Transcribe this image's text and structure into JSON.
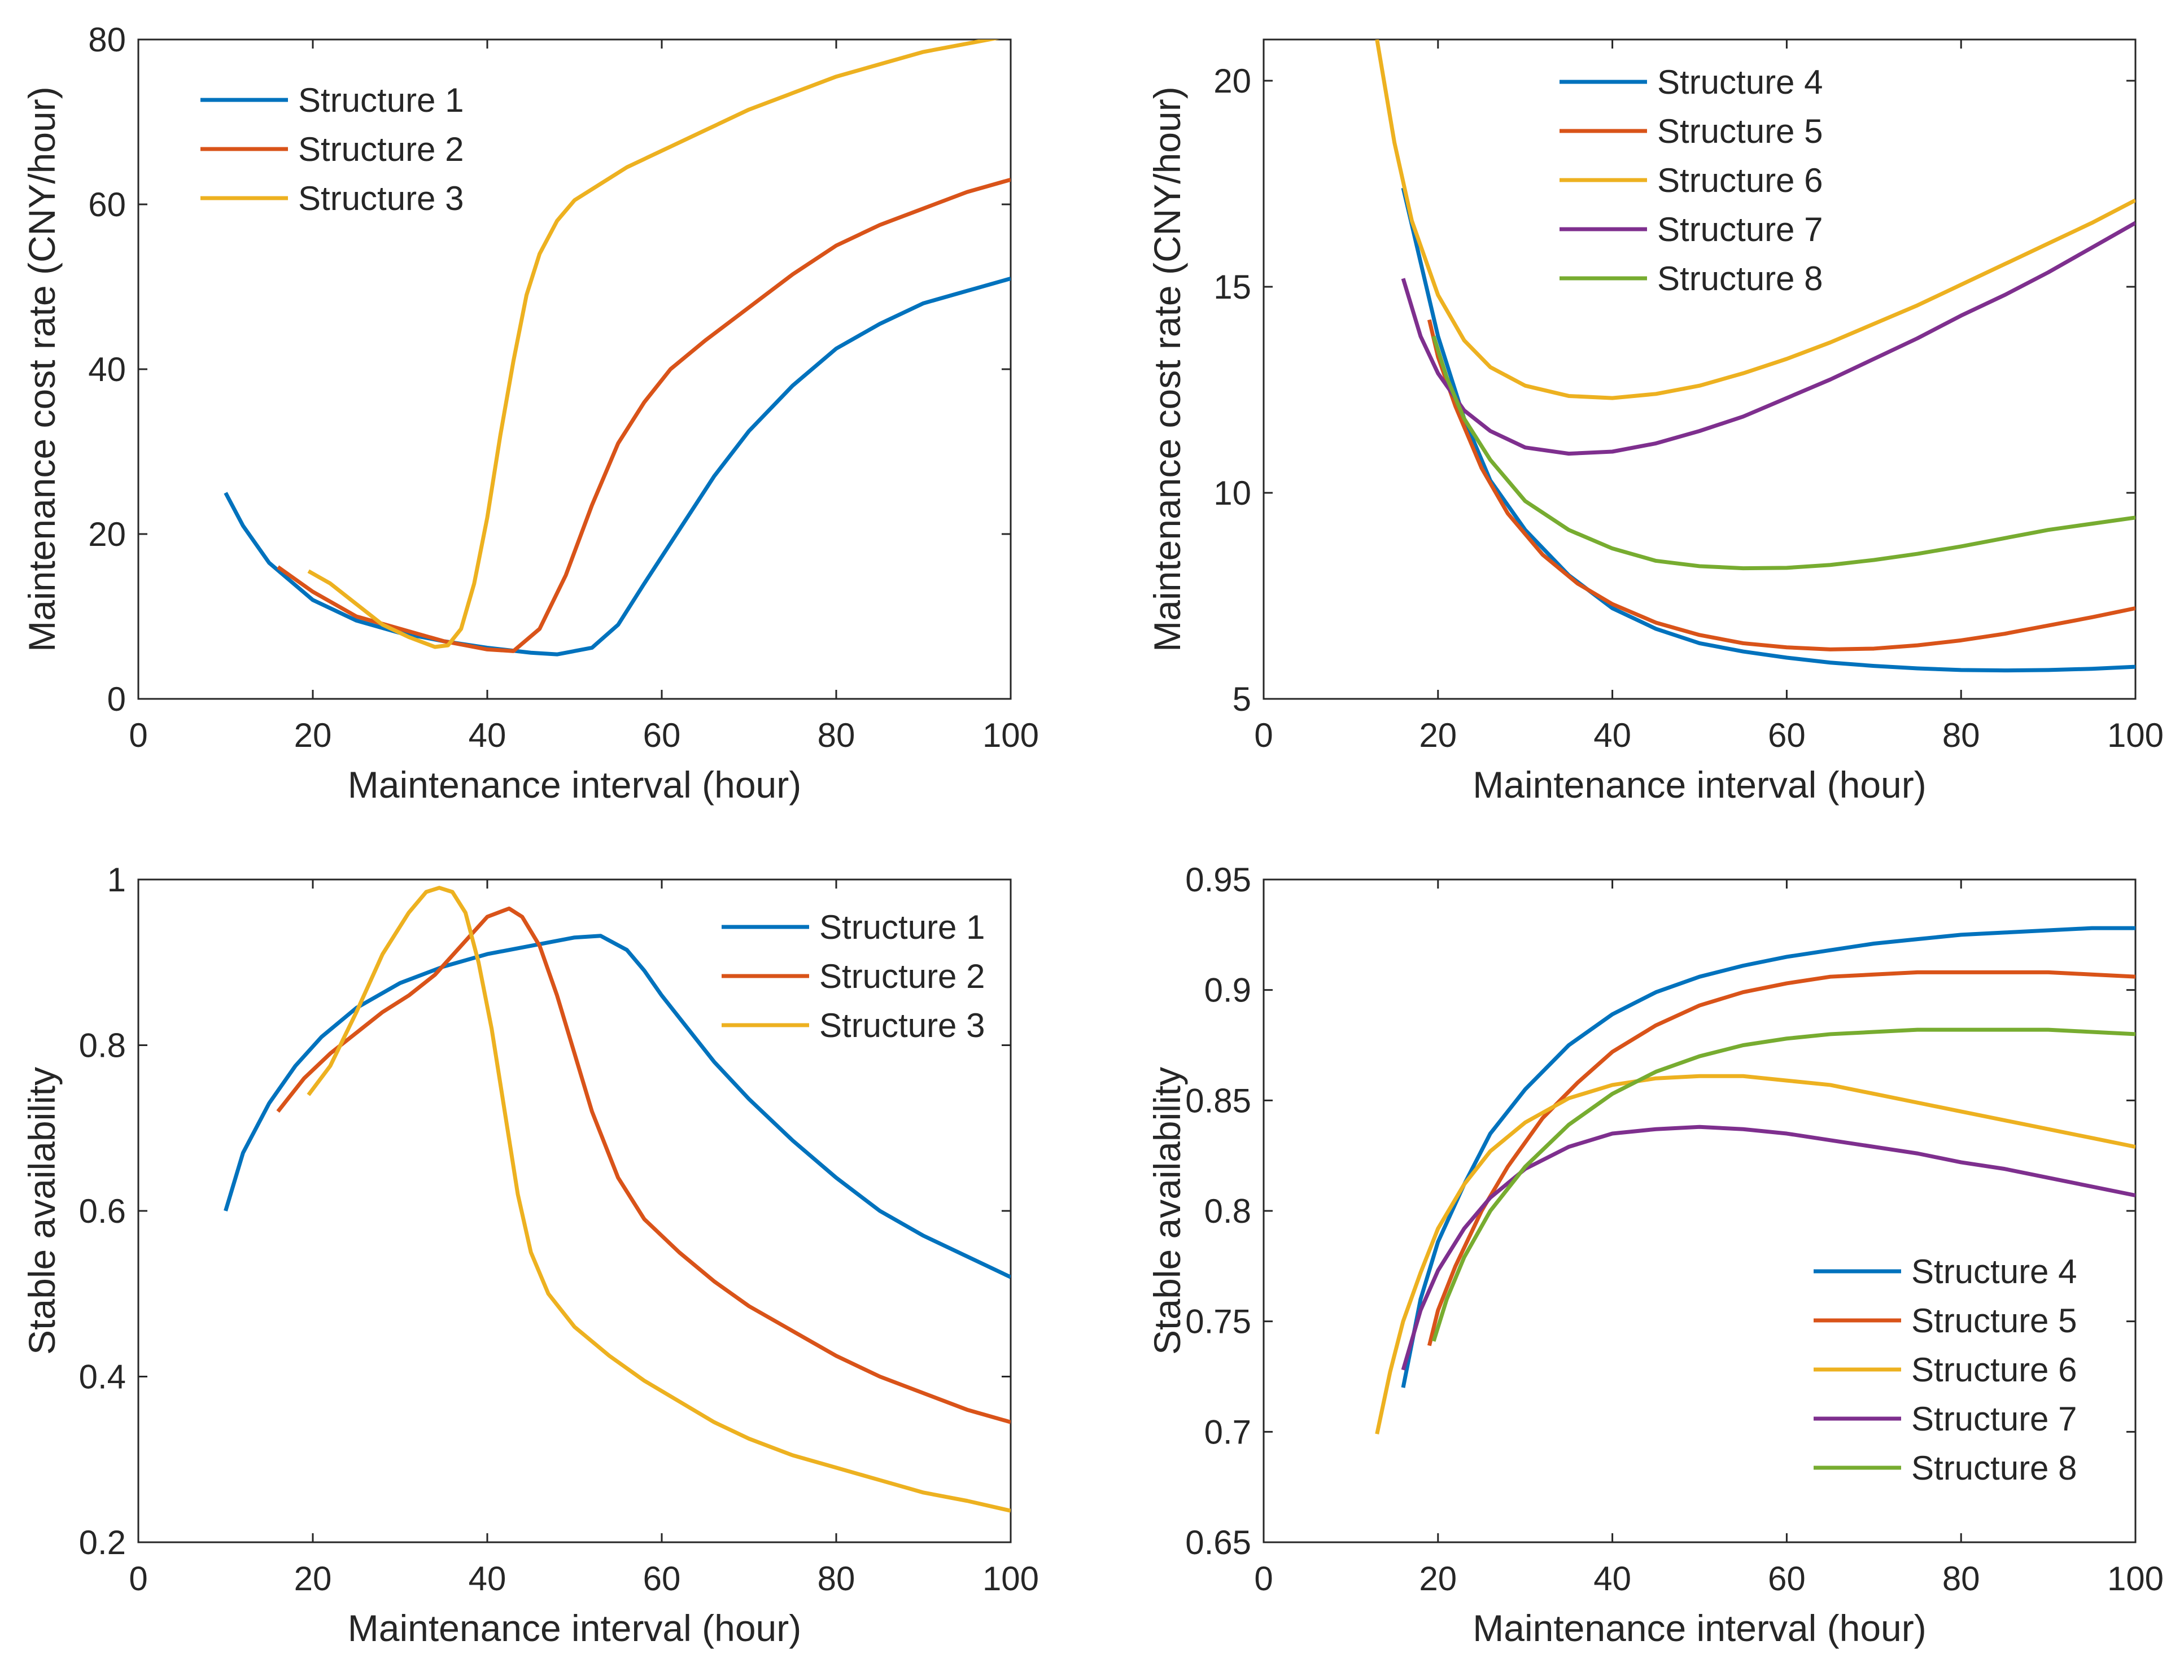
{
  "chart_data": [
    {
      "id": "a",
      "type": "line",
      "xlabel": "Maintenance interval (hour)",
      "ylabel": "Maintenance cost rate (CNY/hour)",
      "xlim": [
        0,
        100
      ],
      "ylim": [
        0,
        80
      ],
      "xticks": [
        0,
        20,
        40,
        60,
        80,
        100
      ],
      "yticks": [
        0,
        20,
        40,
        60,
        80
      ],
      "legend_position": "top-left",
      "series": [
        {
          "name": "Structure 1",
          "color": "#0072BD",
          "x": [
            10,
            12,
            15,
            20,
            25,
            30,
            35,
            40,
            45,
            48,
            52,
            55,
            58,
            62,
            66,
            70,
            75,
            80,
            85,
            90,
            95,
            100
          ],
          "y": [
            25,
            21,
            16.5,
            12,
            9.5,
            8,
            7,
            6.2,
            5.6,
            5.4,
            6.2,
            9,
            14,
            20.5,
            27,
            32.5,
            38,
            42.5,
            45.5,
            48,
            49.5,
            51
          ]
        },
        {
          "name": "Structure 2",
          "color": "#D95319",
          "x": [
            16,
            20,
            25,
            30,
            35,
            40,
            43,
            46,
            49,
            52,
            55,
            58,
            61,
            65,
            70,
            75,
            80,
            85,
            90,
            95,
            100
          ],
          "y": [
            16,
            13,
            10,
            8.5,
            7,
            6,
            5.8,
            8.5,
            15,
            23.5,
            31,
            36,
            40,
            43.5,
            47.5,
            51.5,
            55,
            57.5,
            59.5,
            61.5,
            63
          ]
        },
        {
          "name": "Structure 3",
          "color": "#EDB120",
          "x": [
            19.5,
            22,
            25,
            28,
            31,
            34,
            35.5,
            37,
            38.5,
            40,
            41.5,
            43,
            44.5,
            46,
            48,
            50,
            53,
            56,
            60,
            65,
            70,
            75,
            80,
            85,
            90,
            95,
            100
          ],
          "y": [
            15.5,
            14,
            11.5,
            9,
            7.5,
            6.3,
            6.5,
            8.5,
            14,
            22,
            32,
            41,
            49,
            54,
            58,
            60.5,
            62.5,
            64.5,
            66.5,
            69,
            71.5,
            73.5,
            75.5,
            77,
            78.5,
            79.5,
            80.5
          ]
        }
      ]
    },
    {
      "id": "b",
      "type": "line",
      "xlabel": "Maintenance interval (hour)",
      "ylabel": "Maintenance cost rate (CNY/hour)",
      "xlim": [
        0,
        100
      ],
      "ylim": [
        5,
        21
      ],
      "xticks": [
        0,
        20,
        40,
        60,
        80,
        100
      ],
      "yticks": [
        5,
        10,
        15,
        20
      ],
      "legend_position": "top-center",
      "series": [
        {
          "name": "Structure 4",
          "color": "#0072BD",
          "x": [
            16,
            18,
            20,
            23,
            26,
            30,
            35,
            40,
            45,
            50,
            55,
            60,
            65,
            70,
            75,
            80,
            85,
            90,
            95,
            100
          ],
          "y": [
            17.4,
            15.6,
            13.8,
            11.8,
            10.3,
            9.1,
            8.0,
            7.2,
            6.7,
            6.35,
            6.15,
            6.0,
            5.88,
            5.8,
            5.74,
            5.7,
            5.69,
            5.7,
            5.73,
            5.78
          ]
        },
        {
          "name": "Structure 5",
          "color": "#D95319",
          "x": [
            19,
            20,
            22,
            25,
            28,
            32,
            36,
            40,
            45,
            50,
            55,
            60,
            65,
            70,
            75,
            80,
            85,
            90,
            95,
            100
          ],
          "y": [
            14.2,
            13.3,
            12.1,
            10.6,
            9.5,
            8.5,
            7.8,
            7.3,
            6.85,
            6.55,
            6.35,
            6.25,
            6.2,
            6.22,
            6.3,
            6.42,
            6.58,
            6.78,
            6.98,
            7.2
          ]
        },
        {
          "name": "Structure 6",
          "color": "#EDB120",
          "x": [
            13,
            15,
            17,
            20,
            23,
            26,
            30,
            35,
            40,
            45,
            50,
            55,
            60,
            65,
            70,
            75,
            80,
            85,
            90,
            95,
            100
          ],
          "y": [
            21,
            18.5,
            16.6,
            14.8,
            13.7,
            13.05,
            12.6,
            12.35,
            12.3,
            12.4,
            12.6,
            12.9,
            13.25,
            13.65,
            14.1,
            14.55,
            15.05,
            15.55,
            16.05,
            16.55,
            17.1
          ]
        },
        {
          "name": "Structure 7",
          "color": "#7E2F8E",
          "x": [
            16,
            18,
            20,
            23,
            26,
            30,
            35,
            40,
            45,
            50,
            55,
            60,
            65,
            70,
            75,
            80,
            85,
            90,
            95,
            100
          ],
          "y": [
            15.2,
            13.8,
            12.9,
            12.0,
            11.5,
            11.1,
            10.95,
            11.0,
            11.2,
            11.5,
            11.85,
            12.3,
            12.75,
            13.25,
            13.75,
            14.3,
            14.8,
            15.35,
            15.95,
            16.55
          ]
        },
        {
          "name": "Structure 8",
          "color": "#77AC30",
          "x": [
            19.5,
            21,
            23,
            26,
            30,
            35,
            40,
            45,
            50,
            55,
            60,
            65,
            70,
            75,
            80,
            85,
            90,
            95,
            100
          ],
          "y": [
            13.8,
            12.8,
            11.8,
            10.8,
            9.8,
            9.1,
            8.65,
            8.35,
            8.22,
            8.17,
            8.18,
            8.25,
            8.37,
            8.52,
            8.7,
            8.9,
            9.1,
            9.25,
            9.4
          ]
        }
      ]
    },
    {
      "id": "c",
      "type": "line",
      "xlabel": "Maintenance interval (hour)",
      "ylabel": "Stable availability",
      "xlim": [
        0,
        100
      ],
      "ylim": [
        0.2,
        1
      ],
      "xticks": [
        0,
        20,
        40,
        60,
        80,
        100
      ],
      "yticks": [
        0.2,
        0.4,
        0.6,
        0.8,
        1
      ],
      "yticklabels": [
        "0.2",
        "0.4",
        "0.6",
        "0.8",
        "1"
      ],
      "legend_position": "top-right",
      "series": [
        {
          "name": "Structure 1",
          "color": "#0072BD",
          "x": [
            10,
            12,
            15,
            18,
            21,
            25,
            30,
            35,
            40,
            45,
            50,
            53,
            56,
            58,
            60,
            63,
            66,
            70,
            75,
            80,
            85,
            90,
            95,
            100
          ],
          "y": [
            0.6,
            0.67,
            0.73,
            0.775,
            0.81,
            0.845,
            0.875,
            0.895,
            0.91,
            0.92,
            0.93,
            0.932,
            0.915,
            0.89,
            0.86,
            0.82,
            0.78,
            0.735,
            0.685,
            0.64,
            0.6,
            0.57,
            0.545,
            0.52
          ]
        },
        {
          "name": "Structure 2",
          "color": "#D95319",
          "x": [
            16,
            19,
            22,
            25,
            28,
            31,
            34,
            37,
            40,
            42.5,
            44,
            46,
            48,
            50,
            52,
            55,
            58,
            62,
            66,
            70,
            75,
            80,
            85,
            90,
            95,
            100
          ],
          "y": [
            0.72,
            0.76,
            0.79,
            0.815,
            0.84,
            0.86,
            0.885,
            0.92,
            0.955,
            0.965,
            0.955,
            0.92,
            0.86,
            0.79,
            0.72,
            0.64,
            0.59,
            0.55,
            0.515,
            0.485,
            0.455,
            0.425,
            0.4,
            0.38,
            0.36,
            0.345
          ]
        },
        {
          "name": "Structure 3",
          "color": "#EDB120",
          "x": [
            19.5,
            22,
            25,
            28,
            31,
            33,
            34.5,
            36,
            37.5,
            39,
            40.5,
            42,
            43.5,
            45,
            47,
            50,
            54,
            58,
            62,
            66,
            70,
            75,
            80,
            85,
            90,
            95,
            100
          ],
          "y": [
            0.74,
            0.775,
            0.84,
            0.91,
            0.96,
            0.985,
            0.99,
            0.985,
            0.96,
            0.9,
            0.82,
            0.72,
            0.62,
            0.55,
            0.5,
            0.46,
            0.425,
            0.395,
            0.37,
            0.345,
            0.325,
            0.305,
            0.29,
            0.275,
            0.26,
            0.25,
            0.238
          ]
        }
      ]
    },
    {
      "id": "d",
      "type": "line",
      "xlabel": "Maintenance interval (hour)",
      "ylabel": "Stable availability",
      "xlim": [
        0,
        100
      ],
      "ylim": [
        0.65,
        0.95
      ],
      "xticks": [
        0,
        20,
        40,
        60,
        80,
        100
      ],
      "yticks": [
        0.65,
        0.7,
        0.75,
        0.8,
        0.85,
        0.9,
        0.95
      ],
      "yticklabels": [
        "0.65",
        "0.7",
        "0.75",
        "0.8",
        "0.85",
        "0.9",
        "0.95"
      ],
      "legend_position": "bottom-right",
      "series": [
        {
          "name": "Structure 4",
          "color": "#0072BD",
          "x": [
            16,
            18,
            20,
            23,
            26,
            30,
            35,
            40,
            45,
            50,
            55,
            60,
            65,
            70,
            75,
            80,
            85,
            90,
            95,
            100
          ],
          "y": [
            0.72,
            0.76,
            0.786,
            0.812,
            0.835,
            0.855,
            0.875,
            0.889,
            0.899,
            0.906,
            0.911,
            0.915,
            0.918,
            0.921,
            0.923,
            0.925,
            0.926,
            0.927,
            0.928,
            0.928
          ]
        },
        {
          "name": "Structure 5",
          "color": "#D95319",
          "x": [
            19,
            20,
            22,
            25,
            28,
            32,
            36,
            40,
            45,
            50,
            55,
            60,
            65,
            70,
            75,
            80,
            85,
            90,
            95,
            100
          ],
          "y": [
            0.739,
            0.755,
            0.775,
            0.8,
            0.82,
            0.842,
            0.858,
            0.872,
            0.884,
            0.893,
            0.899,
            0.903,
            0.906,
            0.907,
            0.908,
            0.908,
            0.908,
            0.908,
            0.907,
            0.906
          ]
        },
        {
          "name": "Structure 6",
          "color": "#EDB120",
          "x": [
            13,
            14.5,
            16,
            18,
            20,
            23,
            26,
            30,
            35,
            40,
            45,
            50,
            55,
            60,
            65,
            70,
            75,
            80,
            85,
            90,
            95,
            100
          ],
          "y": [
            0.699,
            0.727,
            0.75,
            0.772,
            0.792,
            0.812,
            0.827,
            0.84,
            0.851,
            0.857,
            0.86,
            0.861,
            0.861,
            0.859,
            0.857,
            0.853,
            0.849,
            0.845,
            0.841,
            0.837,
            0.833,
            0.829
          ]
        },
        {
          "name": "Structure 7",
          "color": "#7E2F8E",
          "x": [
            16,
            18,
            20,
            23,
            26,
            30,
            35,
            40,
            45,
            50,
            55,
            60,
            65,
            70,
            75,
            80,
            85,
            90,
            95,
            100
          ],
          "y": [
            0.728,
            0.755,
            0.773,
            0.792,
            0.806,
            0.819,
            0.829,
            0.835,
            0.837,
            0.838,
            0.837,
            0.835,
            0.832,
            0.829,
            0.826,
            0.822,
            0.819,
            0.815,
            0.811,
            0.807
          ]
        },
        {
          "name": "Structure 8",
          "color": "#77AC30",
          "x": [
            19.5,
            21,
            23,
            26,
            30,
            35,
            40,
            45,
            50,
            55,
            60,
            65,
            70,
            75,
            80,
            85,
            90,
            95,
            100
          ],
          "y": [
            0.741,
            0.76,
            0.779,
            0.8,
            0.82,
            0.839,
            0.853,
            0.863,
            0.87,
            0.875,
            0.878,
            0.88,
            0.881,
            0.882,
            0.882,
            0.882,
            0.882,
            0.881,
            0.88
          ]
        }
      ]
    }
  ]
}
